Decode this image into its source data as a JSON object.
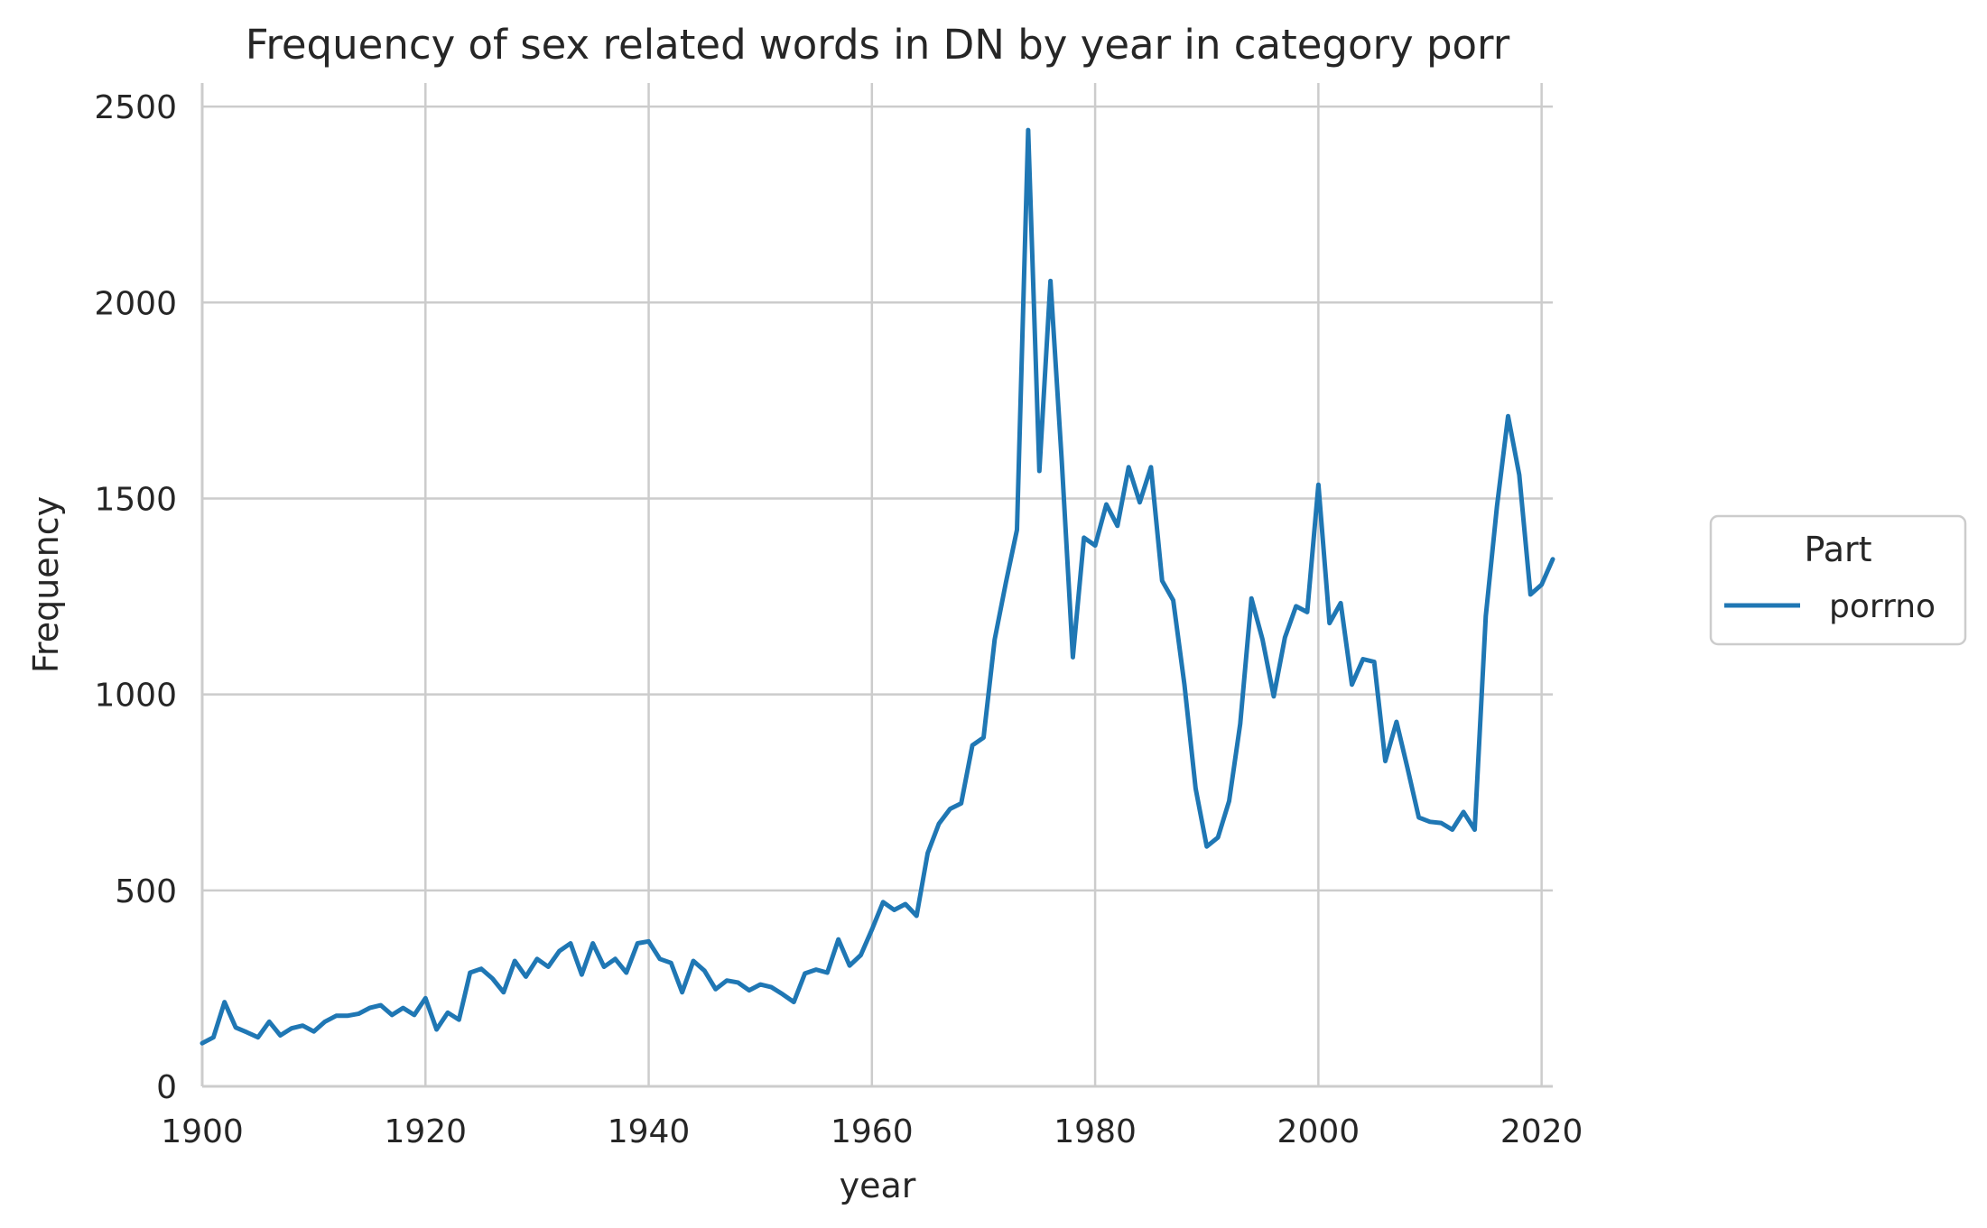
{
  "chart_data": {
    "type": "line",
    "title": "Frequency of sex related words in DN by year in category porr",
    "xlabel": "year",
    "ylabel": "Frequency",
    "xlim": [
      1900,
      2021
    ],
    "ylim": [
      0,
      2560
    ],
    "xticks": [
      1900,
      1920,
      1940,
      1960,
      1980,
      2000,
      2020
    ],
    "yticks": [
      0,
      500,
      1000,
      1500,
      2000,
      2500
    ],
    "grid": true,
    "legend": {
      "title": "Part",
      "placement": "center-right"
    },
    "series": [
      {
        "name": "porrno",
        "color": "#1f77b4",
        "x": [
          1900,
          1901,
          1902,
          1903,
          1904,
          1905,
          1906,
          1907,
          1908,
          1909,
          1910,
          1911,
          1912,
          1913,
          1914,
          1915,
          1916,
          1917,
          1918,
          1919,
          1920,
          1921,
          1922,
          1923,
          1924,
          1925,
          1926,
          1927,
          1928,
          1929,
          1930,
          1931,
          1932,
          1933,
          1934,
          1935,
          1936,
          1937,
          1938,
          1939,
          1940,
          1941,
          1942,
          1943,
          1944,
          1945,
          1946,
          1947,
          1948,
          1949,
          1950,
          1951,
          1952,
          1953,
          1954,
          1955,
          1956,
          1957,
          1958,
          1959,
          1960,
          1961,
          1962,
          1963,
          1964,
          1965,
          1966,
          1967,
          1968,
          1969,
          1970,
          1971,
          1972,
          1973,
          1974,
          1975,
          1976,
          1977,
          1978,
          1979,
          1980,
          1981,
          1982,
          1983,
          1984,
          1985,
          1986,
          1987,
          1988,
          1989,
          1990,
          1991,
          1992,
          1993,
          1994,
          1995,
          1996,
          1997,
          1998,
          1999,
          2000,
          2001,
          2002,
          2003,
          2004,
          2005,
          2006,
          2007,
          2008,
          2009,
          2010,
          2011,
          2012,
          2013,
          2014,
          2015,
          2016,
          2017,
          2018,
          2019,
          2020,
          2021
        ],
        "y": [
          110,
          125,
          215,
          150,
          138,
          125,
          165,
          130,
          148,
          155,
          140,
          165,
          180,
          180,
          185,
          200,
          207,
          182,
          200,
          182,
          225,
          145,
          188,
          170,
          290,
          300,
          275,
          240,
          320,
          280,
          325,
          305,
          345,
          365,
          285,
          365,
          305,
          325,
          290,
          365,
          370,
          325,
          315,
          240,
          320,
          295,
          248,
          270,
          265,
          245,
          260,
          253,
          235,
          215,
          288,
          298,
          290,
          375,
          308,
          335,
          400,
          470,
          450,
          465,
          435,
          595,
          670,
          708,
          722,
          870,
          890,
          1140,
          1285,
          1420,
          2440,
          1570,
          2055,
          1600,
          1095,
          1400,
          1380,
          1485,
          1430,
          1580,
          1490,
          1580,
          1290,
          1240,
          1025,
          760,
          612,
          635,
          728,
          925,
          1245,
          1140,
          995,
          1145,
          1225,
          1210,
          1535,
          1182,
          1233,
          1025,
          1090,
          1083,
          830,
          930,
          810,
          686,
          675,
          672,
          655,
          700,
          655,
          1200,
          1480,
          1710,
          1560,
          1255,
          1280,
          1345
        ]
      }
    ]
  }
}
